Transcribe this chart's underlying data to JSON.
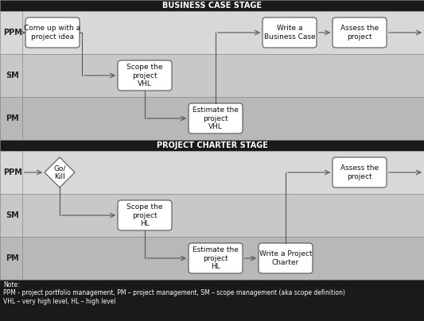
{
  "fig_width": 5.33,
  "fig_height": 4.04,
  "dpi": 100,
  "bg_color": "#000000",
  "header_color": "#1a1a1a",
  "header_text_color": "#ffffff",
  "lane_colors": [
    "#d8d8d8",
    "#c8c8c8",
    "#b8b8b8"
  ],
  "box_fill": "#ffffff",
  "box_edge": "#555555",
  "arrow_color": "#555555",
  "text_color": "#111111",
  "note_text_color": "#ffffff",
  "section1_title": "BUSINESS CASE STAGE",
  "section2_title": "PROJECT CHARTER STAGE",
  "lane_labels": [
    "PPM",
    "SM",
    "PM"
  ],
  "note_text": "Note:\nPPM - project portfolio management, PM – project management, SM – scope management (aka scope definition)\nVHL – very high level, HL – high level"
}
